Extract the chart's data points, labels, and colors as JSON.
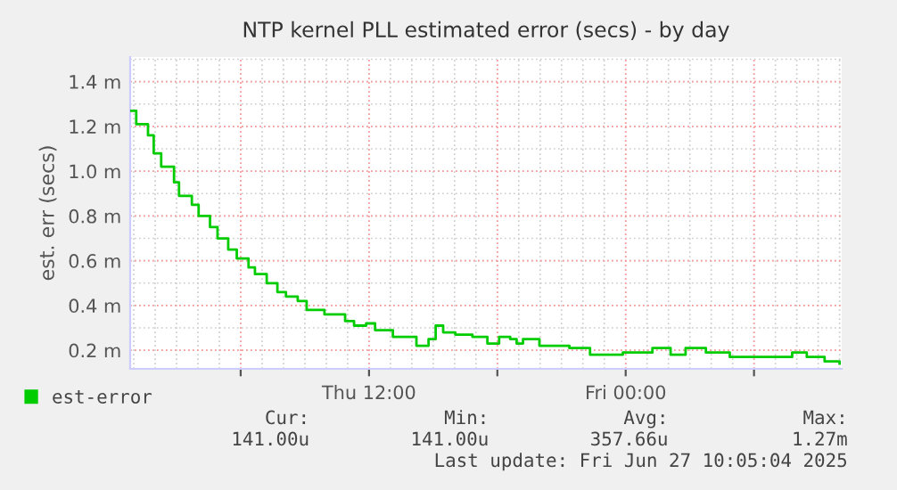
{
  "chart_data": {
    "type": "step",
    "title": "NTP kernel PLL estimated error (secs) - by day",
    "ylabel": "est. err (secs)",
    "x": [
      "2025-06-26T00:53",
      "2025-06-26T01:07",
      "2025-06-26T01:40",
      "2025-06-26T01:56",
      "2025-06-26T02:17",
      "2025-06-26T02:53",
      "2025-06-26T03:07",
      "2025-06-26T03:43",
      "2025-06-26T04:02",
      "2025-06-26T04:34",
      "2025-06-26T04:55",
      "2025-06-26T05:25",
      "2025-06-26T05:49",
      "2025-06-26T06:22",
      "2025-06-26T06:40",
      "2025-06-26T07:13",
      "2025-06-26T07:43",
      "2025-06-26T08:07",
      "2025-06-26T08:40",
      "2025-06-26T09:05",
      "2025-06-26T09:55",
      "2025-06-26T10:53",
      "2025-06-26T11:18",
      "2025-06-26T11:52",
      "2025-06-26T12:17",
      "2025-06-26T13:07",
      "2025-06-26T14:13",
      "2025-06-26T14:47",
      "2025-06-26T15:07",
      "2025-06-26T15:28",
      "2025-06-26T16:02",
      "2025-06-26T16:50",
      "2025-06-26T17:32",
      "2025-06-26T18:05",
      "2025-06-26T18:36",
      "2025-06-26T18:54",
      "2025-06-26T19:12",
      "2025-06-26T19:58",
      "2025-06-26T21:22",
      "2025-06-26T22:20",
      "2025-06-26T23:52",
      "2025-06-27T01:15",
      "2025-06-27T02:06",
      "2025-06-27T02:48",
      "2025-06-27T03:45",
      "2025-06-27T04:52",
      "2025-06-27T05:58",
      "2025-06-27T07:05",
      "2025-06-27T07:47",
      "2025-06-27T08:28",
      "2025-06-27T09:18",
      "2025-06-27T10:00"
    ],
    "series": [
      {
        "name": "est-error",
        "color": "#00cc00",
        "values": [
          1.27,
          1.21,
          1.16,
          1.08,
          1.02,
          0.95,
          0.89,
          0.85,
          0.8,
          0.75,
          0.7,
          0.65,
          0.61,
          0.57,
          0.54,
          0.5,
          0.46,
          0.44,
          0.42,
          0.38,
          0.36,
          0.33,
          0.31,
          0.32,
          0.29,
          0.26,
          0.22,
          0.25,
          0.31,
          0.28,
          0.27,
          0.26,
          0.23,
          0.26,
          0.25,
          0.23,
          0.25,
          0.22,
          0.21,
          0.18,
          0.19,
          0.21,
          0.18,
          0.21,
          0.19,
          0.17,
          0.17,
          0.17,
          0.19,
          0.17,
          0.15,
          0.14
        ]
      }
    ],
    "xlim": [
      "2025-06-26T00:50",
      "2025-06-27T10:06"
    ],
    "xticks": [
      {
        "value": "2025-06-26T06:00",
        "label": null
      },
      {
        "value": "2025-06-26T12:00",
        "label": "Thu 12:00"
      },
      {
        "value": "2025-06-26T18:00",
        "label": null
      },
      {
        "value": "2025-06-27T00:00",
        "label": "Fri 00:00"
      },
      {
        "value": "2025-06-27T06:00",
        "label": null
      }
    ],
    "ylim": [
      0.117,
      1.51
    ],
    "yticks": [
      {
        "value": 0.2,
        "label": "0.2 m"
      },
      {
        "value": 0.4,
        "label": "0.4 m"
      },
      {
        "value": 0.6,
        "label": "0.6 m"
      },
      {
        "value": 0.8,
        "label": "0.8 m"
      },
      {
        "value": 1.0,
        "label": "1.0 m"
      },
      {
        "value": 1.2,
        "label": "1.2 m"
      },
      {
        "value": 1.4,
        "label": "1.4 m"
      }
    ],
    "grid": true,
    "legend": "bottom",
    "line_style": "solid",
    "marker": "none",
    "annotations": [
      "Cur:",
      "Min:",
      "Avg:",
      "Max:",
      "141.00u",
      "141.00u",
      "357.66u",
      "1.27m",
      "Last update: Fri Jun 27 10:05:04 2025"
    ]
  }
}
